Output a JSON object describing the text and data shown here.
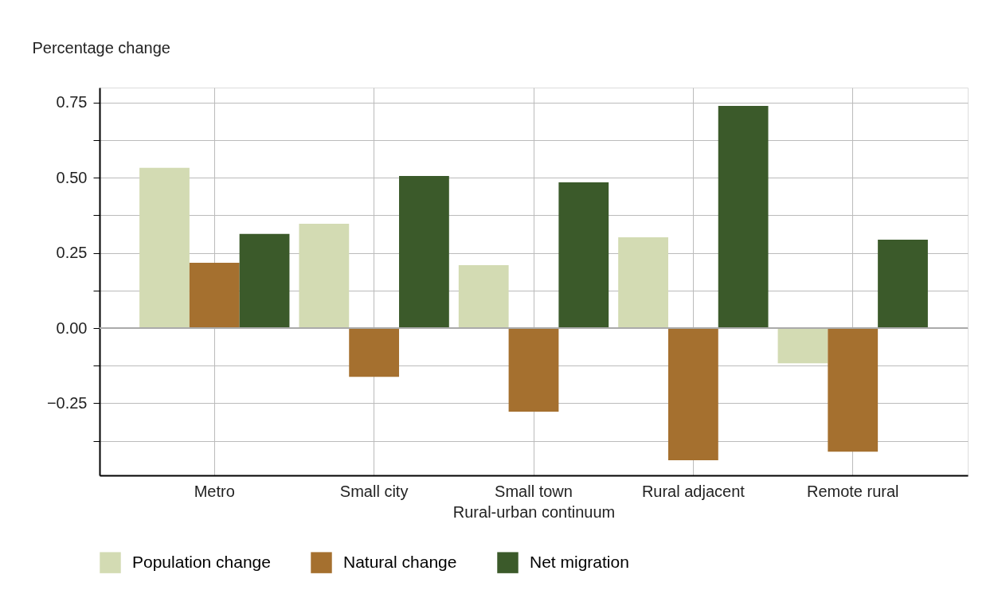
{
  "chart_data": {
    "type": "bar",
    "ylabel": "Percentage change",
    "xlabel": "Rural-urban continuum",
    "categories": [
      "Metro",
      "Small city",
      "Small town",
      "Rural adjacent",
      "Remote rural"
    ],
    "series": [
      {
        "name": "Population change",
        "color": "#d3dbb3",
        "values": [
          0.533,
          0.347,
          0.209,
          0.302,
          -0.117
        ]
      },
      {
        "name": "Natural change",
        "color": "#a5702f",
        "values": [
          0.217,
          -0.162,
          -0.278,
          -0.44,
          -0.411
        ]
      },
      {
        "name": "Net migration",
        "color": "#3b5a2a",
        "values": [
          0.313,
          0.506,
          0.485,
          0.739,
          0.294
        ]
      }
    ],
    "ylim": [
      -0.49,
      0.8
    ],
    "yticks": [
      {
        "value": -0.375,
        "label": null
      },
      {
        "value": -0.25,
        "label": "−0.25"
      },
      {
        "value": -0.125,
        "label": null
      },
      {
        "value": 0,
        "label": "0.00"
      },
      {
        "value": 0.125,
        "label": null
      },
      {
        "value": 0.25,
        "label": "0.25"
      },
      {
        "value": 0.375,
        "label": null
      },
      {
        "value": 0.5,
        "label": "0.50"
      },
      {
        "value": 0.625,
        "label": null
      },
      {
        "value": 0.75,
        "label": "0.75"
      }
    ],
    "grid": true,
    "legend": "bottom"
  }
}
